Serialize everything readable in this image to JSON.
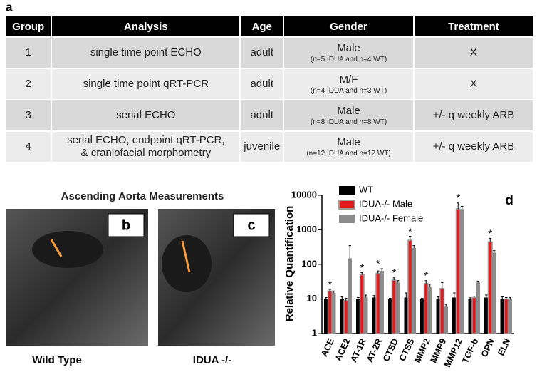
{
  "panel_labels": {
    "a": "a",
    "b": "b",
    "c": "c",
    "d": "d"
  },
  "table": {
    "header": [
      "Group",
      "Analysis",
      "Age",
      "Gender",
      "Treatment"
    ],
    "rows": [
      {
        "group": "1",
        "analysis": [
          "single time point ECHO"
        ],
        "age": "adult",
        "gender": "Male",
        "gender_note": "(n=5 IDUA and n=4 WT)",
        "treatment": "X"
      },
      {
        "group": "2",
        "analysis": [
          "single time point qRT-PCR"
        ],
        "age": "adult",
        "gender": "M/F",
        "gender_note": "(n=4 IDUA and n=3 WT)",
        "treatment": "X"
      },
      {
        "group": "3",
        "analysis": [
          "serial ECHO"
        ],
        "age": "adult",
        "gender": "Male",
        "gender_note": "(n=8 IDUA and n=8 WT)",
        "treatment": "+/-  q weekly ARB"
      },
      {
        "group": "4",
        "analysis": [
          "serial ECHO, endpoint qRT-PCR,",
          "& craniofacial morphometry"
        ],
        "age": "juvenile",
        "gender": "Male",
        "gender_note": "(n=12 IDUA and n=12 WT)",
        "treatment": "+/-  q weekly ARB"
      }
    ]
  },
  "images": {
    "title": "Ascending Aorta Measurements",
    "left_caption": "Wild Type",
    "right_caption": "IDUA -/-"
  },
  "chart_data": {
    "type": "bar",
    "y_label": "Relative Quantification",
    "log_scale": true,
    "categories": [
      "ACE",
      "ACE2",
      "AT-1R",
      "AT-2R",
      "CTSD",
      "CTSS",
      "MMP2",
      "MMP9",
      "MMP12",
      "TGF-b",
      "OPN",
      "ELN"
    ],
    "series": [
      {
        "name": "WT",
        "color": "#000000",
        "values": [
          10,
          10,
          10,
          11,
          10,
          11,
          10,
          10,
          11,
          10,
          11,
          10
        ],
        "errors": [
          1,
          1.5,
          1,
          1.5,
          0.5,
          4,
          0.5,
          1.5,
          4,
          0.8,
          2,
          1.5
        ]
      },
      {
        "name": "IDUA-/- Male",
        "color": "#e31a1c",
        "values": [
          17,
          9,
          50,
          55,
          35,
          500,
          28,
          20,
          4000,
          11,
          450,
          10
        ],
        "errors": [
          2,
          1.5,
          8,
          10,
          6,
          150,
          6,
          10,
          2000,
          1,
          120,
          1
        ]
      },
      {
        "name": "IDUA-/- Female",
        "color": "#8c8c8c",
        "values": [
          15,
          150,
          11,
          65,
          30,
          300,
          22,
          6,
          4000,
          30,
          220,
          10
        ],
        "errors": [
          2,
          200,
          2,
          10,
          4,
          50,
          5,
          1,
          800,
          3,
          30,
          1
        ]
      }
    ],
    "annotations": [
      "*",
      null,
      "*",
      "*",
      "*",
      "*",
      "*",
      null,
      "*",
      null,
      "*",
      null
    ],
    "ylim": [
      1,
      10000
    ],
    "yticks": [
      1,
      10,
      100,
      1000,
      10000
    ]
  }
}
